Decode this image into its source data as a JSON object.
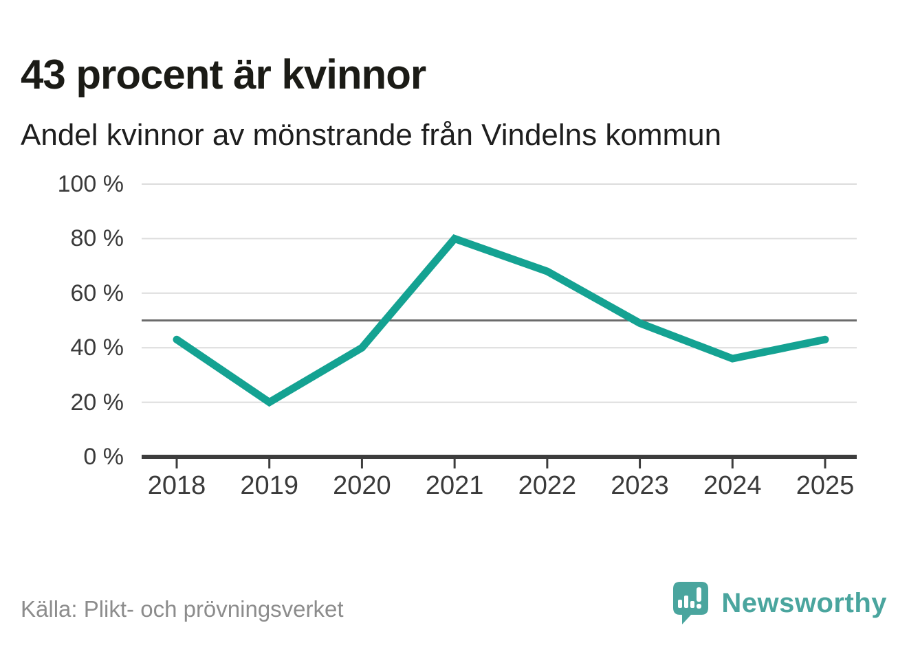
{
  "header": {
    "title": "43 procent är kvinnor",
    "subtitle": "Andel kvinnor av mönstrande från Vindelns kommun"
  },
  "footer": {
    "source": "Källa: Plikt- och prövningsverket",
    "brand": "Newsworthy",
    "brand_icon": "speech-bubble-bar-chart-exclamation"
  },
  "colors": {
    "line": "#14a292",
    "grid": "#dcdcdc",
    "reference": "#6b6b6b",
    "axis": "#3d3d3d",
    "tick_label": "#3a3a3a",
    "title_text": "#1b1b16",
    "source_text": "#8c8c8c",
    "brand_teal": "#4aa59e"
  },
  "chart_data": {
    "type": "line",
    "title": "43 procent är kvinnor",
    "subtitle": "Andel kvinnor av mönstrande från Vindelns kommun",
    "x": [
      "2018",
      "2019",
      "2020",
      "2021",
      "2022",
      "2023",
      "2024",
      "2025"
    ],
    "series": [
      {
        "name": "Andel kvinnor av mönstrande",
        "values": [
          43,
          20,
          40,
          80,
          68,
          49,
          36,
          43
        ],
        "color": "#14a292"
      }
    ],
    "unit": "%",
    "ylim": [
      0,
      100
    ],
    "yticks": [
      0,
      20,
      40,
      60,
      80,
      100
    ],
    "ytick_labels": [
      "0 %",
      "20 %",
      "40 %",
      "60 %",
      "80 %",
      "100 %"
    ],
    "reference_line": 50,
    "grid": true,
    "legend": "none",
    "source": "Källa: Plikt- och prövningsverket"
  }
}
